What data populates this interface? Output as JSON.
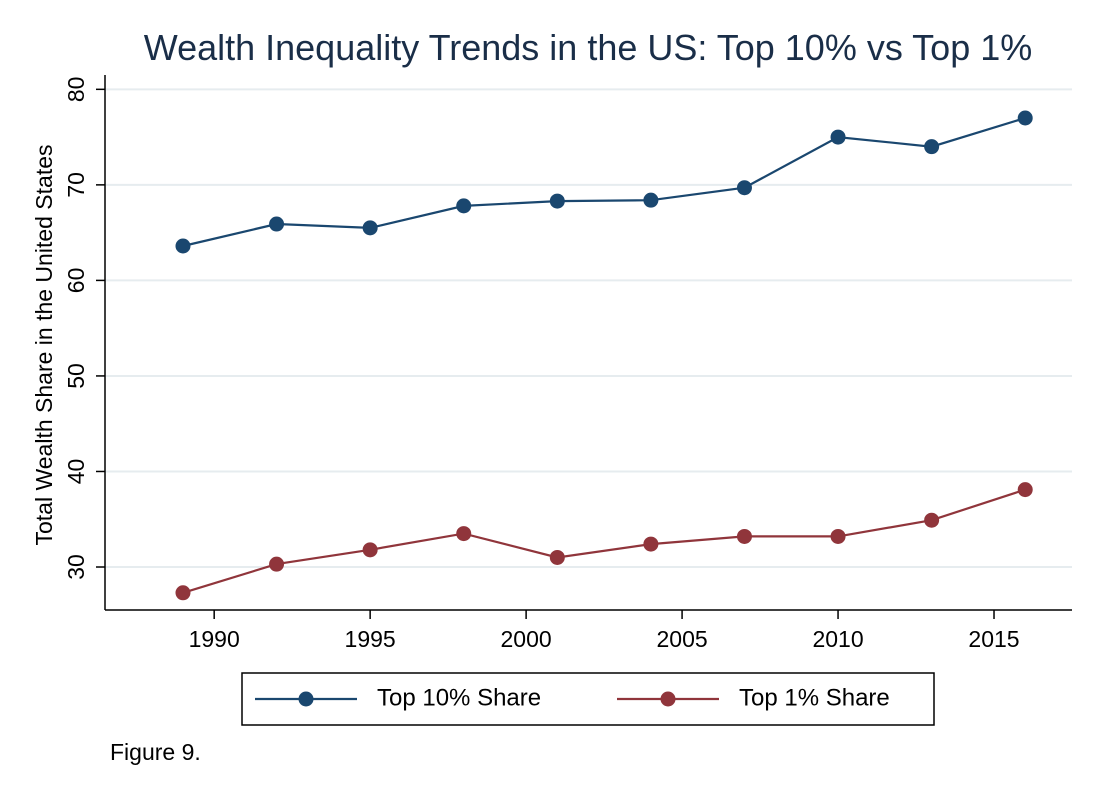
{
  "figure_caption": "Figure 9.",
  "chart_data": {
    "type": "line",
    "title": "Wealth Inequality Trends in the US: Top 10% vs Top 1%",
    "xlabel": "",
    "ylabel": "Total Wealth Share in the United States",
    "x": [
      1989,
      1992,
      1995,
      1998,
      2001,
      2004,
      2007,
      2010,
      2013,
      2016
    ],
    "xlim": [
      1986.5,
      2017.5
    ],
    "ylim": [
      25.5,
      81.5
    ],
    "xticks": [
      1990,
      1995,
      2000,
      2005,
      2010,
      2015
    ],
    "yticks": [
      30,
      40,
      50,
      60,
      70,
      80
    ],
    "grid": true,
    "legend_position": "bottom",
    "series": [
      {
        "name": "Top 10% Share",
        "color": "#1a476f",
        "values": [
          63.6,
          65.9,
          65.5,
          67.8,
          68.3,
          68.4,
          69.7,
          75.0,
          74.0,
          77.0
        ]
      },
      {
        "name": "Top 1% Share",
        "color": "#90353b",
        "values": [
          27.3,
          30.3,
          31.8,
          33.5,
          31.0,
          32.4,
          33.2,
          33.2,
          34.9,
          38.1
        ]
      }
    ]
  }
}
